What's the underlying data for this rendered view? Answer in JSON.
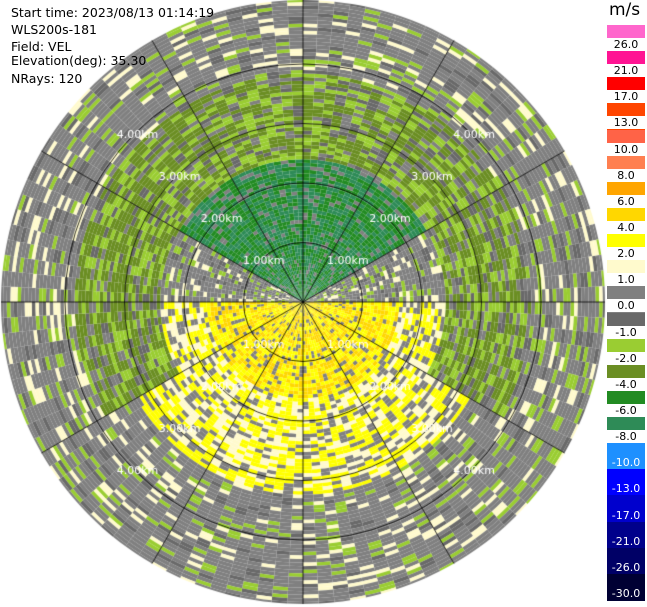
{
  "header": {
    "start_time": "Start time: 2023/08/13 01:14:19",
    "instrument": "WLS200s-181",
    "field": "Field: VEL",
    "elevation": "Elevation(deg): 35.30",
    "nrays": "NRays: 120"
  },
  "colorbar": {
    "unit": "m/s",
    "ticks": [
      "26.0",
      "21.0",
      "17.0",
      "13.0",
      "10.0",
      "8.0",
      "6.0",
      "4.0",
      "2.0",
      "1.0",
      "0.0",
      "-1.0",
      "-2.0",
      "-4.0",
      "-6.0",
      "-8.0",
      "-10.0",
      "-13.0",
      "-17.0",
      "-21.0",
      "-26.0",
      "-30.0"
    ],
    "colors": [
      "#ff66cc",
      "#ff1493",
      "#ff0000",
      "#ff4500",
      "#ff6347",
      "#ff7f50",
      "#ffa500",
      "#ffd700",
      "#ffff00",
      "#fffacd",
      "#808080",
      "#696969",
      "#9acd32",
      "#6b8e23",
      "#228b22",
      "#2e8b57",
      "#1e90ff",
      "#0000ff",
      "#0000cd",
      "#00008b",
      "#000066",
      "#000033"
    ]
  },
  "chart_data": {
    "type": "ppi",
    "field": "VEL",
    "nrays": 120,
    "range_rings_km": [
      1.0,
      2.0,
      3.0,
      4.0
    ],
    "ring_label_suffix": "km",
    "value_range": [
      -30.0,
      26.0
    ],
    "sectors": [
      {
        "azimuth_deg": [
          300,
          60
        ],
        "range_km": [
          0,
          2.4
        ],
        "value_ms": -6.0
      },
      {
        "azimuth_deg": [
          240,
          120
        ],
        "range_km": [
          2.4,
          3.8
        ],
        "value_ms": -2.0
      },
      {
        "azimuth_deg": [
          90,
          270
        ],
        "range_km": [
          0,
          1.6
        ],
        "value_ms": 4.0
      },
      {
        "azimuth_deg": [
          90,
          270
        ],
        "range_km": [
          1.6,
          3.2
        ],
        "value_ms": 2.0
      },
      {
        "azimuth_deg": [
          0,
          360
        ],
        "range_km": [
          3.8,
          5.4
        ],
        "value_ms": "noise"
      }
    ]
  }
}
